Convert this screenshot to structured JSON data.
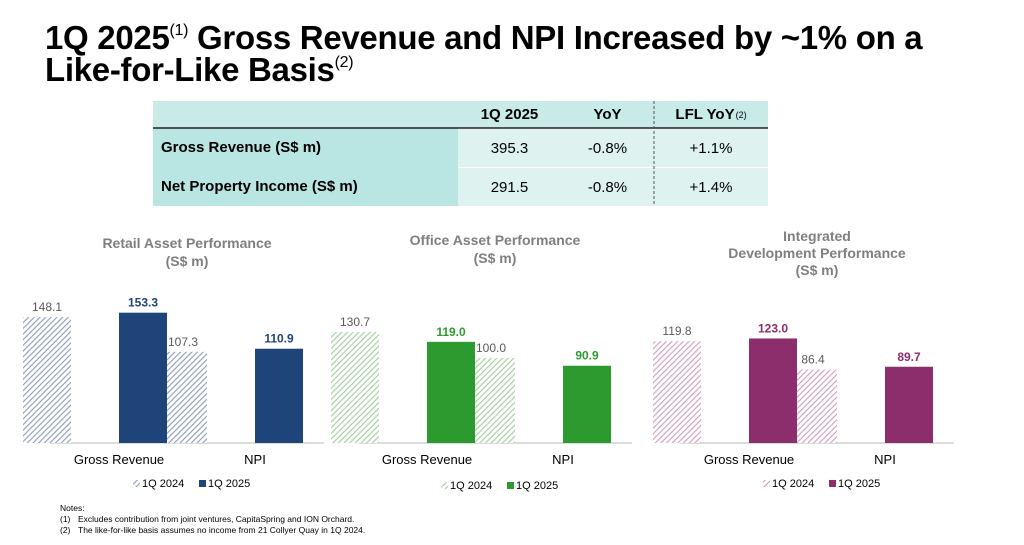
{
  "title": {
    "line_1": "1Q 2025",
    "sup_1": "(1)",
    "line_1_rest": "Gross Revenue and NPI Increased by ~1% on a",
    "line_2": "Like-for-Like Basis",
    "sup_2": "(2)"
  },
  "table": {
    "header": [
      "1Q 2025",
      "YoY",
      "LFL YoY"
    ],
    "header_sup": "(2)",
    "rows": [
      [
        "Gross Revenue (S$ m)",
        "395.3",
        "-0.8%",
        "+1.1%"
      ],
      [
        "Net Property Income (S$ m)",
        "291.5",
        "-0.8%",
        "+1.4%"
      ]
    ]
  },
  "chart_data": [
    {
      "type": "bar",
      "title": "Retail Asset Performance",
      "subtitle": "(S$ m)",
      "categories": [
        "Gross Revenue",
        "NPI"
      ],
      "series": [
        {
          "name": "1Q 2024",
          "color": "#8c9bb5",
          "pattern": "hatch",
          "values": [
            148.1,
            107.3
          ],
          "value_labels": [
            "148.1",
            "107.3"
          ]
        },
        {
          "name": "1Q 2025",
          "color": "#1f4479",
          "values": [
            153.3,
            110.9
          ],
          "value_labels": [
            "153.3",
            "110.9"
          ]
        }
      ]
    },
    {
      "type": "bar",
      "title": "Office Asset Performance",
      "subtitle": "(S$ m)",
      "categories": [
        "Gross Revenue",
        "NPI"
      ],
      "series": [
        {
          "name": "1Q 2024",
          "color": "#9fcf9a",
          "pattern": "hatch",
          "values": [
            130.7,
            100.0
          ],
          "value_labels": [
            "130.7",
            "100.0"
          ]
        },
        {
          "name": "1Q 2025",
          "color": "#2c9a2e",
          "values": [
            119.0,
            90.9
          ],
          "value_labels": [
            "119.0",
            "90.9"
          ]
        }
      ]
    },
    {
      "type": "bar",
      "title": "Integrated Development Performance",
      "subtitle": "(S$ m)",
      "categories": [
        "Gross Revenue",
        "NPI"
      ],
      "series": [
        {
          "name": "1Q 2024",
          "color": "#d19cbf",
          "pattern": "hatch",
          "values": [
            119.8,
            86.4
          ],
          "value_labels": [
            "119.8",
            "86.4"
          ]
        },
        {
          "name": "1Q 2025",
          "color": "#8c2d6c",
          "values": [
            123.0,
            89.7
          ],
          "value_labels": [
            "123.0",
            "89.7"
          ]
        }
      ]
    }
  ],
  "notes": {
    "heading": "Notes:",
    "items": [
      [
        "(1)",
        "Excludes contribution from joint ventures, CapitaSpring and ION Orchard."
      ],
      [
        "(2)",
        "The like-for-like basis assumes no income from 21 Collyer Quay in 1Q 2024."
      ]
    ]
  }
}
